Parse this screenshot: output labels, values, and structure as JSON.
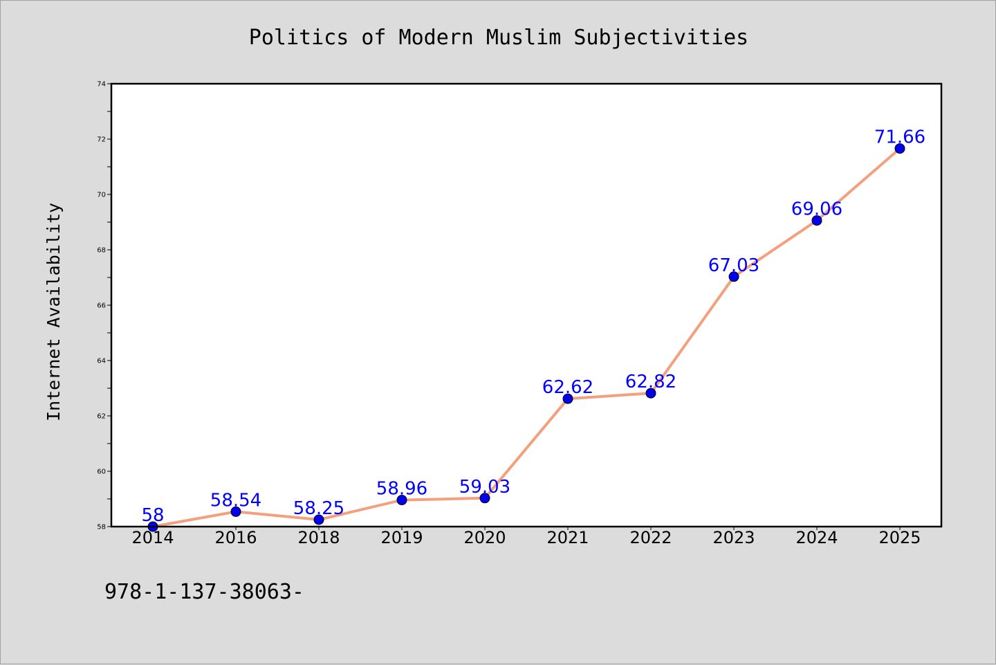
{
  "chart_data": {
    "type": "line",
    "title": "Politics of Modern Muslim Subjectivities",
    "xlabel": "",
    "ylabel": "Internet Availability",
    "categories": [
      "2014",
      "2016",
      "2018",
      "2019",
      "2020",
      "2021",
      "2022",
      "2023",
      "2024",
      "2025"
    ],
    "series": [
      {
        "values": [
          58,
          58.54,
          58.25,
          58.96,
          59.03,
          62.62,
          62.82,
          67.03,
          69.06,
          71.66
        ],
        "labels": [
          "58",
          "58.54",
          "58.25",
          "58.96",
          "59.03",
          "62.62",
          "62.82",
          "67.03",
          "69.06",
          "71.66"
        ],
        "line_color": "#f4a07e",
        "marker_color": "#0000ee"
      }
    ],
    "ylim": [
      58,
      74
    ],
    "yticks": [
      58,
      60,
      62,
      64,
      66,
      68,
      70,
      72,
      74
    ],
    "grid": false,
    "legend": "none"
  },
  "footer": {
    "text": "978-1-137-38063-"
  },
  "colors": {
    "background": "#dcdcdc",
    "plot_background": "#ffffff",
    "data_label": "#0000ff"
  }
}
